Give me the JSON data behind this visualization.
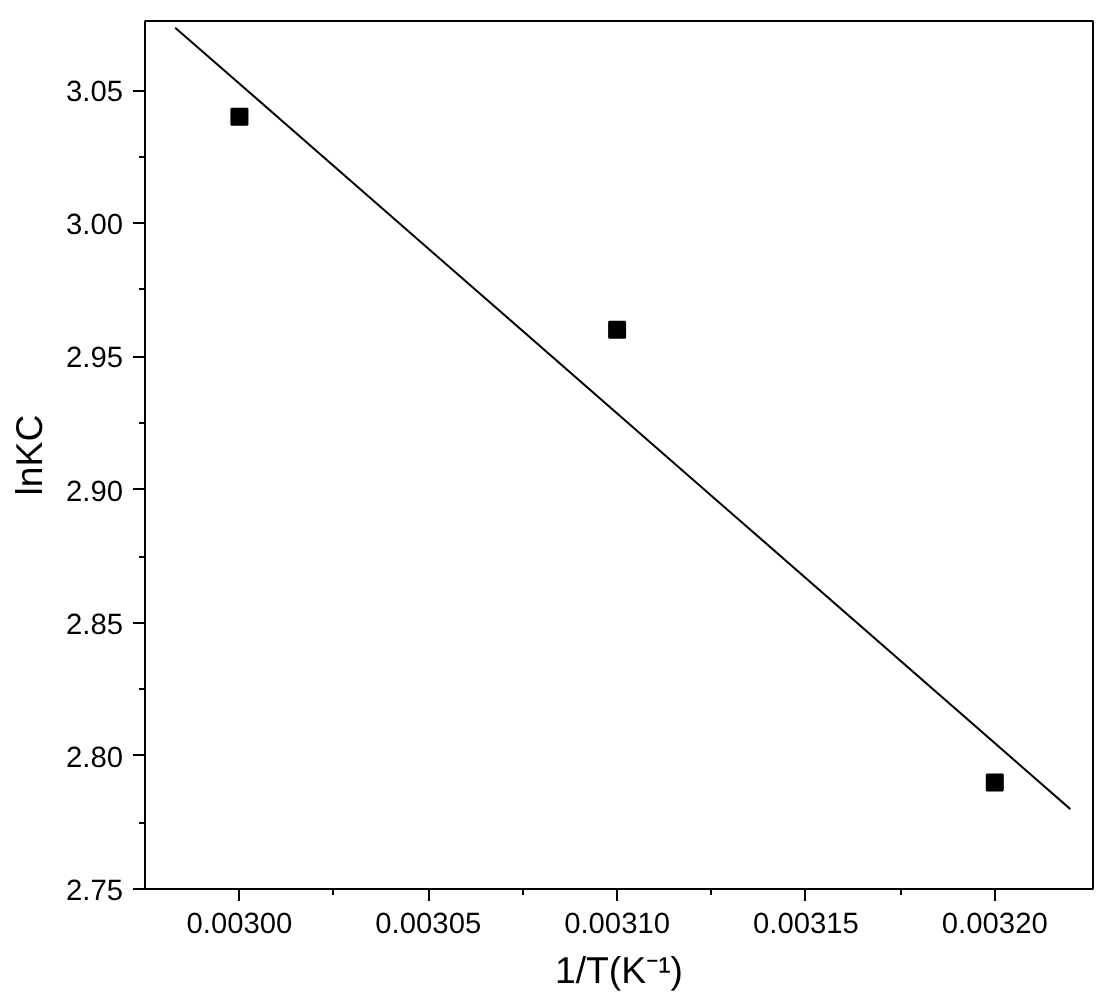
{
  "chart_data": {
    "type": "scatter",
    "xlabel": "1/T(K⁻¹)",
    "ylabel": "lnKC",
    "xlim": [
      0.002975,
      0.003226
    ],
    "ylim": [
      2.75,
      3.076
    ],
    "xticks": [
      {
        "value": 0.003,
        "label": "0.00300"
      },
      {
        "value": 0.00305,
        "label": "0.00305"
      },
      {
        "value": 0.0031,
        "label": "0.00310"
      },
      {
        "value": 0.00315,
        "label": "0.00315"
      },
      {
        "value": 0.0032,
        "label": "0.00320"
      }
    ],
    "yticks": [
      2.75,
      {
        "value": 2.8,
        "label": "2.80"
      },
      2.85,
      {
        "value": 2.9,
        "label": "2.90"
      },
      2.95,
      {
        "value": 3.0,
        "label": "3.00"
      },
      3.05
    ],
    "grid": false,
    "series": [
      {
        "color": "#000000",
        "marker": "square",
        "x": [
          0.003,
          0.0031,
          0.0032
        ],
        "values": [
          3.04,
          2.96,
          2.79
        ]
      },
      {
        "type": "line",
        "color": "#000000",
        "x": [
          0.002983,
          0.00322
        ],
        "values": [
          3.0735,
          2.78
        ]
      }
    ]
  }
}
